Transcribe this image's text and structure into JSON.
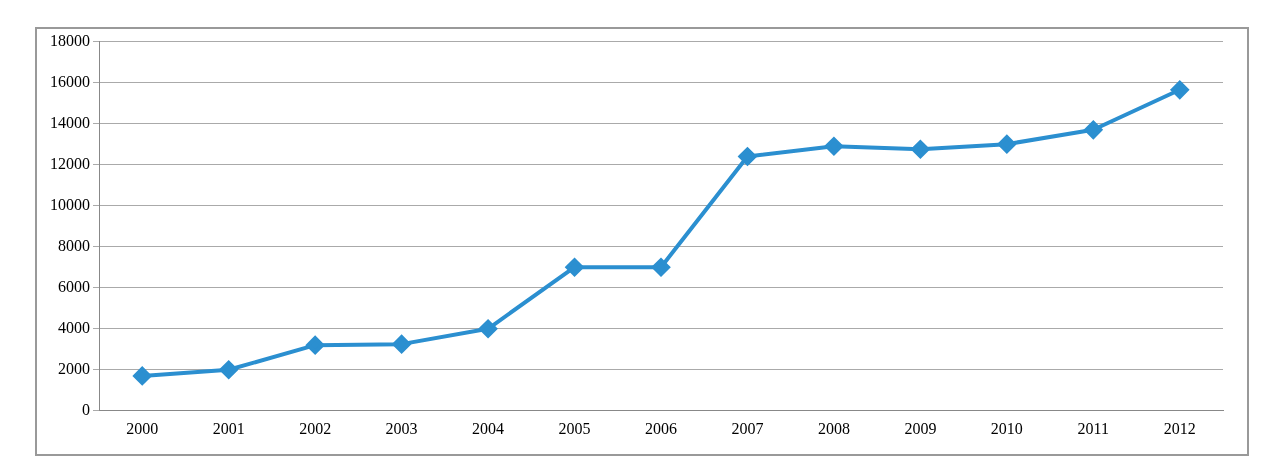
{
  "chart_data": {
    "type": "line",
    "categories": [
      "2000",
      "2001",
      "2002",
      "2003",
      "2004",
      "2005",
      "2006",
      "2007",
      "2008",
      "2009",
      "2010",
      "2011",
      "2012"
    ],
    "series": [
      {
        "color": "#2b8fd0",
        "values": [
          1700,
          2000,
          3200,
          3250,
          4000,
          7000,
          7000,
          12400,
          12900,
          12750,
          13000,
          13700,
          15650
        ]
      }
    ],
    "ylim": [
      0,
      18000
    ],
    "yticks": [
      0,
      2000,
      4000,
      6000,
      8000,
      10000,
      12000,
      14000,
      16000,
      18000
    ],
    "grid": "y",
    "legend": false,
    "marker": "diamond",
    "line_style": "solid"
  }
}
